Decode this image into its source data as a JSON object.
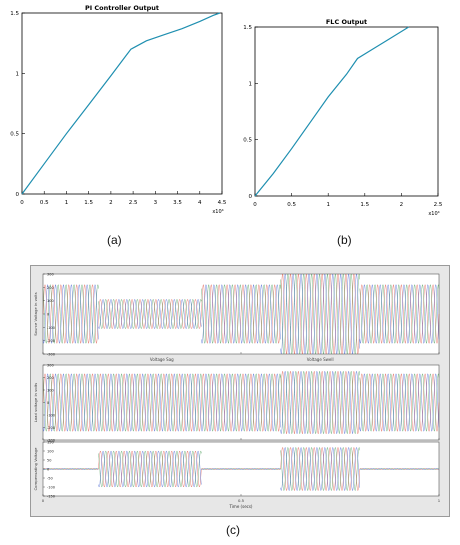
{
  "captions": {
    "a": "(a)",
    "b": "(b)",
    "c": "(c)"
  },
  "chart_data": [
    {
      "type": "line",
      "title": "PI Controller Output",
      "xlim": [
        0,
        45000
      ],
      "ylim": [
        0,
        1.5
      ],
      "x_ticks": [
        "0",
        "0.5",
        "1",
        "1.5",
        "2",
        "2.5",
        "3",
        "3.5",
        "4",
        "4.5"
      ],
      "x_tick_values": [
        0,
        5000,
        10000,
        15000,
        20000,
        25000,
        30000,
        35000,
        40000,
        45000
      ],
      "y_ticks": [
        "0",
        "0.5",
        "1",
        "1.5"
      ],
      "y_tick_values": [
        0,
        0.5,
        1,
        1.5
      ],
      "x_multiplier": "x10⁴",
      "line_color": "#1f8fb0",
      "series": [
        {
          "x": [
            0,
            5000,
            10000,
            15000,
            20000,
            24500,
            25500,
            28000,
            32000,
            36000,
            40000,
            43000,
            44500
          ],
          "y": [
            0,
            0.25,
            0.5,
            0.74,
            0.98,
            1.2,
            1.22,
            1.27,
            1.32,
            1.37,
            1.43,
            1.48,
            1.5
          ]
        }
      ]
    },
    {
      "type": "line",
      "title": "FLC Output",
      "xlim": [
        0,
        25000
      ],
      "ylim": [
        0,
        1.5
      ],
      "x_ticks": [
        "0",
        "0.5",
        "1",
        "1.5",
        "2",
        "2.5"
      ],
      "x_tick_values": [
        0,
        5000,
        10000,
        15000,
        20000,
        25000
      ],
      "y_ticks": [
        "0",
        "0.5",
        "1",
        "1.5"
      ],
      "y_tick_values": [
        0,
        0.5,
        1,
        1.5
      ],
      "x_multiplier": "x10⁴",
      "line_color": "#1f8fb0",
      "series": [
        {
          "x": [
            0,
            2500,
            5000,
            7500,
            10000,
            12500,
            14000,
            16000,
            18000,
            20000,
            21000
          ],
          "y": [
            0,
            0.2,
            0.42,
            0.65,
            0.88,
            1.08,
            1.22,
            1.3,
            1.38,
            1.46,
            1.5
          ]
        }
      ]
    },
    {
      "type": "line",
      "subplots": [
        {
          "ylabel": "Source Voltage in volts",
          "ylim": [
            -300,
            300
          ],
          "y_ticks": [
            "300",
            "200",
            "100",
            "0",
            "-100",
            "-200",
            "-300"
          ],
          "y_tick_values": [
            300,
            200,
            100,
            0,
            -100,
            -200,
            -300
          ],
          "segments": [
            {
              "t": [
                0,
                0.14
              ],
              "amplitude": 220
            },
            {
              "t": [
                0.14,
                0.4
              ],
              "amplitude": 110
            },
            {
              "t": [
                0.4,
                0.6
              ],
              "amplitude": 220
            },
            {
              "t": [
                0.6,
                0.8
              ],
              "amplitude": 300
            },
            {
              "t": [
                0.8,
                1.0
              ],
              "amplitude": 220
            }
          ],
          "annotations": [
            {
              "text": "Voltage Sag",
              "t": 0.3
            },
            {
              "text": "Voltage Swell",
              "t": 0.7
            }
          ]
        },
        {
          "ylabel": "Load voltage in volts",
          "ylim": [
            -300,
            300
          ],
          "y_ticks": [
            "300",
            "200",
            "100",
            "0",
            "-100",
            "-200",
            "-300"
          ],
          "y_tick_values": [
            300,
            200,
            100,
            0,
            -100,
            -200,
            -300
          ],
          "segments": [
            {
              "t": [
                0,
                0.6
              ],
              "amplitude": 230
            },
            {
              "t": [
                0.6,
                0.8
              ],
              "amplitude": 250
            },
            {
              "t": [
                0.8,
                1.0
              ],
              "amplitude": 230
            }
          ],
          "annotations": []
        },
        {
          "ylabel": "Compensating Voltage",
          "ylim": [
            -150,
            150
          ],
          "y_ticks": [
            "150",
            "100",
            "50",
            "0",
            "-50",
            "-100",
            "-150"
          ],
          "y_tick_values": [
            150,
            100,
            50,
            0,
            -50,
            -100,
            -150
          ],
          "segments": [
            {
              "t": [
                0,
                0.14
              ],
              "amplitude": 3
            },
            {
              "t": [
                0.14,
                0.4
              ],
              "amplitude": 100
            },
            {
              "t": [
                0.4,
                0.6
              ],
              "amplitude": 3
            },
            {
              "t": [
                0.6,
                0.8
              ],
              "amplitude": 120
            },
            {
              "t": [
                0.8,
                1.0
              ],
              "amplitude": 3
            }
          ],
          "annotations": []
        }
      ],
      "xlabel": "Time (secs)",
      "xlim": [
        0,
        1
      ],
      "x_ticks": [
        "0",
        "0.5",
        "1"
      ],
      "x_tick_values": [
        0,
        0.5,
        1
      ],
      "phase_colors": [
        "#d93a2b",
        "#2a8a3a",
        "#2346c8"
      ],
      "cycles": 50
    }
  ]
}
